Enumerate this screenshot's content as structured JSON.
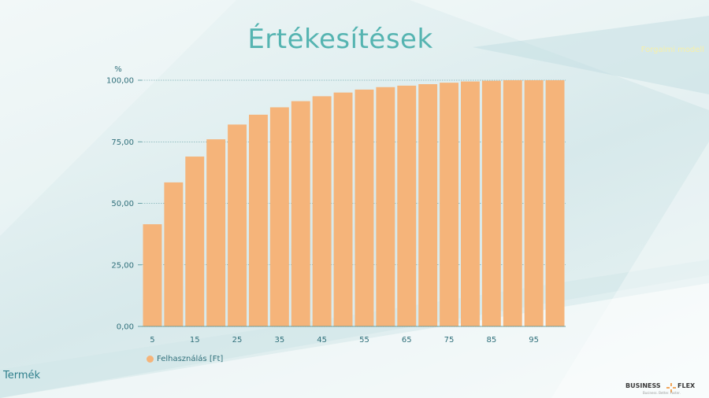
{
  "page": {
    "title": "Értékesítések",
    "tag": "Forgalmi modell",
    "footer_label": "Termék",
    "logo_left": "BUSINESS",
    "logo_right": "FLEX",
    "logo_sub": "Business. Better. Faster."
  },
  "chart_data": {
    "type": "bar",
    "title": "",
    "ylabel": "%",
    "xlabel": "",
    "ylim": [
      0,
      100
    ],
    "yticks": [
      "0,00",
      "25,00",
      "50,00",
      "75,00",
      "100,00"
    ],
    "x": [
      5,
      10,
      15,
      20,
      25,
      30,
      35,
      40,
      45,
      50,
      55,
      60,
      65,
      70,
      75,
      80,
      85,
      90,
      95,
      100
    ],
    "x_tick_labels": [
      "5",
      "15",
      "25",
      "35",
      "45",
      "55",
      "65",
      "75",
      "85",
      "95"
    ],
    "series": [
      {
        "name": "Felhasználás [Ft]",
        "color": "#f5b47a",
        "values": [
          41.5,
          58.5,
          69,
          76,
          82,
          86,
          89,
          91.5,
          93.5,
          95,
          96.2,
          97.2,
          97.8,
          98.4,
          99,
          99.5,
          99.8,
          100,
          100,
          100
        ]
      }
    ],
    "grid": true,
    "legend_position": "bottom-left"
  }
}
